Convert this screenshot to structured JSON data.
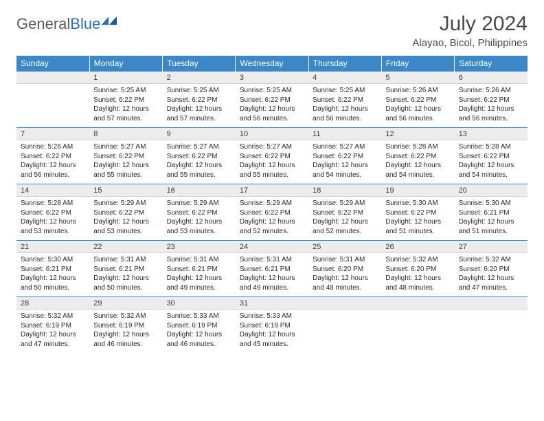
{
  "logo": {
    "text1": "General",
    "text2": "Blue"
  },
  "title": "July 2024",
  "location": "Alayao, Bicol, Philippines",
  "colors": {
    "header_bg": "#3b87c8",
    "header_text": "#ffffff",
    "daynum_bg": "#ececec",
    "border_top": "#3b87c8",
    "text": "#2a2a2a",
    "logo_gray": "#5a5a5a",
    "logo_blue": "#2d6fb5"
  },
  "day_names": [
    "Sunday",
    "Monday",
    "Tuesday",
    "Wednesday",
    "Thursday",
    "Friday",
    "Saturday"
  ],
  "weeks": [
    {
      "nums": [
        "",
        "1",
        "2",
        "3",
        "4",
        "5",
        "6"
      ],
      "cells": [
        null,
        {
          "sr": "5:25 AM",
          "ss": "6:22 PM",
          "dl": "12 hours and 57 minutes."
        },
        {
          "sr": "5:25 AM",
          "ss": "6:22 PM",
          "dl": "12 hours and 57 minutes."
        },
        {
          "sr": "5:25 AM",
          "ss": "6:22 PM",
          "dl": "12 hours and 56 minutes."
        },
        {
          "sr": "5:25 AM",
          "ss": "6:22 PM",
          "dl": "12 hours and 56 minutes."
        },
        {
          "sr": "5:26 AM",
          "ss": "6:22 PM",
          "dl": "12 hours and 56 minutes."
        },
        {
          "sr": "5:26 AM",
          "ss": "6:22 PM",
          "dl": "12 hours and 56 minutes."
        }
      ]
    },
    {
      "nums": [
        "7",
        "8",
        "9",
        "10",
        "11",
        "12",
        "13"
      ],
      "cells": [
        {
          "sr": "5:26 AM",
          "ss": "6:22 PM",
          "dl": "12 hours and 56 minutes."
        },
        {
          "sr": "5:27 AM",
          "ss": "6:22 PM",
          "dl": "12 hours and 55 minutes."
        },
        {
          "sr": "5:27 AM",
          "ss": "6:22 PM",
          "dl": "12 hours and 55 minutes."
        },
        {
          "sr": "5:27 AM",
          "ss": "6:22 PM",
          "dl": "12 hours and 55 minutes."
        },
        {
          "sr": "5:27 AM",
          "ss": "6:22 PM",
          "dl": "12 hours and 54 minutes."
        },
        {
          "sr": "5:28 AM",
          "ss": "6:22 PM",
          "dl": "12 hours and 54 minutes."
        },
        {
          "sr": "5:28 AM",
          "ss": "6:22 PM",
          "dl": "12 hours and 54 minutes."
        }
      ]
    },
    {
      "nums": [
        "14",
        "15",
        "16",
        "17",
        "18",
        "19",
        "20"
      ],
      "cells": [
        {
          "sr": "5:28 AM",
          "ss": "6:22 PM",
          "dl": "12 hours and 53 minutes."
        },
        {
          "sr": "5:29 AM",
          "ss": "6:22 PM",
          "dl": "12 hours and 53 minutes."
        },
        {
          "sr": "5:29 AM",
          "ss": "6:22 PM",
          "dl": "12 hours and 53 minutes."
        },
        {
          "sr": "5:29 AM",
          "ss": "6:22 PM",
          "dl": "12 hours and 52 minutes."
        },
        {
          "sr": "5:29 AM",
          "ss": "6:22 PM",
          "dl": "12 hours and 52 minutes."
        },
        {
          "sr": "5:30 AM",
          "ss": "6:22 PM",
          "dl": "12 hours and 51 minutes."
        },
        {
          "sr": "5:30 AM",
          "ss": "6:21 PM",
          "dl": "12 hours and 51 minutes."
        }
      ]
    },
    {
      "nums": [
        "21",
        "22",
        "23",
        "24",
        "25",
        "26",
        "27"
      ],
      "cells": [
        {
          "sr": "5:30 AM",
          "ss": "6:21 PM",
          "dl": "12 hours and 50 minutes."
        },
        {
          "sr": "5:31 AM",
          "ss": "6:21 PM",
          "dl": "12 hours and 50 minutes."
        },
        {
          "sr": "5:31 AM",
          "ss": "6:21 PM",
          "dl": "12 hours and 49 minutes."
        },
        {
          "sr": "5:31 AM",
          "ss": "6:21 PM",
          "dl": "12 hours and 49 minutes."
        },
        {
          "sr": "5:31 AM",
          "ss": "6:20 PM",
          "dl": "12 hours and 48 minutes."
        },
        {
          "sr": "5:32 AM",
          "ss": "6:20 PM",
          "dl": "12 hours and 48 minutes."
        },
        {
          "sr": "5:32 AM",
          "ss": "6:20 PM",
          "dl": "12 hours and 47 minutes."
        }
      ]
    },
    {
      "nums": [
        "28",
        "29",
        "30",
        "31",
        "",
        "",
        ""
      ],
      "cells": [
        {
          "sr": "5:32 AM",
          "ss": "6:19 PM",
          "dl": "12 hours and 47 minutes."
        },
        {
          "sr": "5:32 AM",
          "ss": "6:19 PM",
          "dl": "12 hours and 46 minutes."
        },
        {
          "sr": "5:33 AM",
          "ss": "6:19 PM",
          "dl": "12 hours and 46 minutes."
        },
        {
          "sr": "5:33 AM",
          "ss": "6:19 PM",
          "dl": "12 hours and 45 minutes."
        },
        null,
        null,
        null
      ]
    }
  ],
  "labels": {
    "sunrise": "Sunrise:",
    "sunset": "Sunset:",
    "daylight": "Daylight:"
  }
}
